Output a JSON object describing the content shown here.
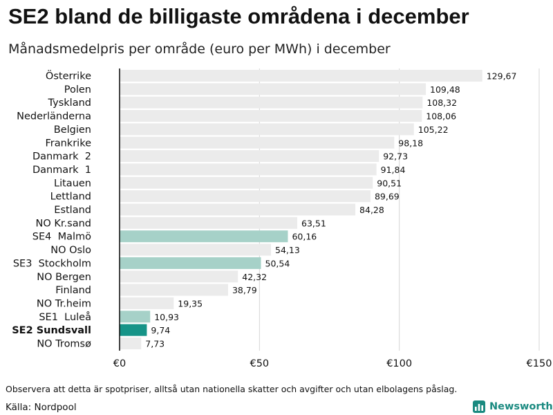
{
  "title": "SE2 bland de billigaste områdena i december",
  "subtitle": "Månadsmedelpris per område (euro per MWh) i december",
  "footnote": "Observera att detta är spotpriser, alltså utan nationella skatter och avgifter och utan elbolagens påslag.",
  "source": "Källa: Nordpool",
  "brand": {
    "name": "Newsworthy",
    "icon": "bar-chart-logo-icon"
  },
  "colors": {
    "default_bar": "#ebebeb",
    "se_bar": "#a6d1c8",
    "highlight_bar": "#169488",
    "axis_line": "#111111",
    "gridline": "#d4d4d4",
    "brand": "#1a8a80"
  },
  "chart_data": {
    "type": "bar",
    "orientation": "horizontal",
    "title": "SE2 bland de billigaste områdena i december",
    "subtitle": "Månadsmedelpris per område (euro per MWh) i december",
    "xlabel": "",
    "ylabel": "",
    "xlim": [
      0,
      150
    ],
    "grid": true,
    "x_ticks": [
      {
        "value": 0,
        "label": "€0"
      },
      {
        "value": 50,
        "label": "€50"
      },
      {
        "value": 100,
        "label": "€100"
      },
      {
        "value": 150,
        "label": "€150"
      }
    ],
    "bars": [
      {
        "category": "Österrike",
        "value": 129.67,
        "label": "129,67",
        "group": "other"
      },
      {
        "category": "Polen",
        "value": 109.48,
        "label": "109,48",
        "group": "other"
      },
      {
        "category": "Tyskland",
        "value": 108.32,
        "label": "108,32",
        "group": "other"
      },
      {
        "category": "Nederländerna",
        "value": 108.06,
        "label": "108,06",
        "group": "other"
      },
      {
        "category": "Belgien",
        "value": 105.22,
        "label": "105,22",
        "group": "other"
      },
      {
        "category": "Frankrike",
        "value": 98.18,
        "label": "98,18",
        "group": "other"
      },
      {
        "category": "Danmark  2",
        "value": 92.73,
        "label": "92,73",
        "group": "other"
      },
      {
        "category": "Danmark  1",
        "value": 91.84,
        "label": "91,84",
        "group": "other"
      },
      {
        "category": "Litauen",
        "value": 90.51,
        "label": "90,51",
        "group": "other"
      },
      {
        "category": "Lettland",
        "value": 89.69,
        "label": "89,69",
        "group": "other"
      },
      {
        "category": "Estland",
        "value": 84.28,
        "label": "84,28",
        "group": "other"
      },
      {
        "category": "NO Kr.sand",
        "value": 63.51,
        "label": "63,51",
        "group": "other"
      },
      {
        "category": "SE4  Malmö",
        "value": 60.16,
        "label": "60,16",
        "group": "se"
      },
      {
        "category": "NO Oslo",
        "value": 54.13,
        "label": "54,13",
        "group": "other"
      },
      {
        "category": "SE3  Stockholm",
        "value": 50.54,
        "label": "50,54",
        "group": "se"
      },
      {
        "category": "NO Bergen",
        "value": 42.32,
        "label": "42,32",
        "group": "other"
      },
      {
        "category": "Finland",
        "value": 38.79,
        "label": "38,79",
        "group": "other"
      },
      {
        "category": "NO Tr.heim",
        "value": 19.35,
        "label": "19,35",
        "group": "other"
      },
      {
        "category": "SE1  Luleå",
        "value": 10.93,
        "label": "10,93",
        "group": "se"
      },
      {
        "category": "SE2 Sundsvall",
        "value": 9.74,
        "label": "9,74",
        "group": "highlight"
      },
      {
        "category": "NO Tromsø",
        "value": 7.73,
        "label": "7,73",
        "group": "other"
      }
    ]
  }
}
